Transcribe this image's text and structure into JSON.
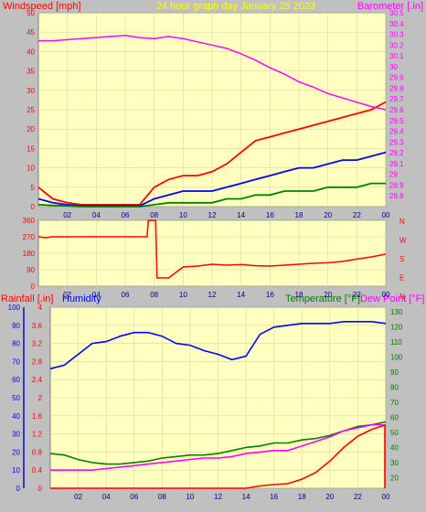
{
  "header_top": {
    "left": "Windspeed [mph]",
    "center": "24 hour graph day   January 25 2023",
    "right": "Barometer [.in]"
  },
  "header_bottom": {
    "left_rain": "Rainfall [.in]",
    "left_hum": "Humidity",
    "right_temp": "Temperature [°F]",
    "right_dew": "Dew Point [°F]"
  },
  "colors": {
    "background": "#c0c0c0",
    "plot_bg": "#ffffc0",
    "wind_gust": "#ff0000",
    "wind_avg": "#0000ff",
    "wind_min": "#008000",
    "barometer": "#ff00ff",
    "direction": "#ff0000",
    "rain": "#ff0000",
    "humidity": "#0000ff",
    "temperature": "#008000",
    "dewpoint": "#ff00ff"
  },
  "x_ticks": [
    "02",
    "04",
    "06",
    "08",
    "10",
    "12",
    "14",
    "16",
    "18",
    "20",
    "22",
    "00"
  ],
  "chart_data": [
    {
      "id": "wind_baro",
      "type": "line",
      "left_ticks": [
        "0",
        "5",
        "10",
        "15",
        "20",
        "25",
        "30",
        "35",
        "40",
        "45",
        "50"
      ],
      "right_ticks": [
        "28.8",
        "28.9",
        "29",
        "29.1",
        "29.2",
        "29.3",
        "29.4",
        "29.5",
        "29.6",
        "29.7",
        "29.8",
        "29.9",
        "30",
        "30.1",
        "30.2",
        "30.3",
        "30.4",
        "30.5"
      ],
      "ylim_left": [
        0,
        50
      ],
      "ylim_right": [
        28.7,
        30.5
      ],
      "x": [
        0,
        1,
        2,
        3,
        4,
        5,
        6,
        7,
        8,
        9,
        10,
        11,
        12,
        13,
        14,
        15,
        16,
        17,
        18,
        19,
        20,
        21,
        22,
        23,
        24
      ],
      "series": [
        {
          "key": "gust",
          "values": [
            5,
            2,
            1,
            0.5,
            0.5,
            0.5,
            0.5,
            0.5,
            5,
            7,
            8,
            8,
            9,
            11,
            14,
            17,
            18,
            19,
            20,
            21,
            22,
            23,
            24,
            25,
            27
          ]
        },
        {
          "key": "avg",
          "values": [
            2,
            1,
            0.5,
            0.2,
            0.2,
            0.2,
            0.2,
            0.2,
            2,
            3,
            4,
            4,
            4,
            5,
            6,
            7,
            8,
            9,
            10,
            10,
            11,
            12,
            12,
            13,
            14
          ]
        },
        {
          "key": "min",
          "values": [
            0.5,
            0.3,
            0.2,
            0,
            0,
            0,
            0,
            0,
            0.5,
            1,
            1,
            1,
            1,
            2,
            2,
            3,
            3,
            4,
            4,
            4,
            5,
            5,
            5,
            6,
            6
          ]
        },
        {
          "key": "barometer",
          "values": [
            30.24,
            30.24,
            30.25,
            30.26,
            30.27,
            30.28,
            30.29,
            30.27,
            30.26,
            30.28,
            30.26,
            30.23,
            30.2,
            30.17,
            30.12,
            30.06,
            29.99,
            29.93,
            29.86,
            29.81,
            29.75,
            29.71,
            29.67,
            29.63,
            29.6
          ]
        }
      ]
    },
    {
      "id": "direction",
      "type": "line",
      "left_ticks": [
        "0",
        "90",
        "180",
        "270",
        "360"
      ],
      "right_ticks": [
        "N",
        "W",
        "S",
        "E",
        "N"
      ],
      "ylim": [
        0,
        360
      ],
      "x": [
        0,
        0.5,
        1,
        2,
        3,
        4,
        5,
        6,
        7,
        7.5,
        7.6,
        8.1,
        8.2,
        9,
        10,
        11,
        12,
        13,
        14,
        15,
        16,
        17,
        18,
        19,
        20,
        21,
        22,
        23,
        24
      ],
      "series": [
        {
          "key": "direction",
          "values": [
            270,
            265,
            270,
            270,
            270,
            270,
            270,
            270,
            270,
            270,
            360,
            360,
            45,
            45,
            105,
            110,
            120,
            115,
            118,
            112,
            110,
            115,
            120,
            125,
            128,
            135,
            148,
            160,
            175
          ]
        }
      ]
    },
    {
      "id": "rain_hum_temp",
      "type": "line",
      "left_ticks": [
        "0",
        "0.4",
        "0.8",
        "1.2",
        "1.6",
        "2",
        "2.4",
        "2.8",
        "3.2",
        "3.6",
        "4"
      ],
      "humidity_ticks": [
        "0",
        "10",
        "20",
        "30",
        "40",
        "50",
        "60",
        "70",
        "80",
        "90",
        "100"
      ],
      "right_ticks": [
        "20",
        "30",
        "40",
        "50",
        "60",
        "70",
        "80",
        "90",
        "100",
        "110",
        "120",
        "130"
      ],
      "ylim_rain": [
        0,
        4
      ],
      "ylim_humidity": [
        0,
        100
      ],
      "ylim_temp": [
        13,
        133
      ],
      "x": [
        0,
        1,
        2,
        3,
        4,
        5,
        6,
        7,
        8,
        9,
        10,
        11,
        12,
        13,
        14,
        15,
        16,
        17,
        18,
        19,
        20,
        21,
        22,
        23,
        24
      ],
      "series": [
        {
          "key": "rain",
          "values": [
            0,
            0,
            0,
            0,
            0,
            0,
            0,
            0,
            0,
            0,
            0,
            0,
            0,
            0,
            0,
            0.05,
            0.08,
            0.1,
            0.2,
            0.35,
            0.6,
            0.9,
            1.15,
            1.3,
            1.4
          ]
        },
        {
          "key": "humidity",
          "values": [
            66,
            68,
            74,
            80,
            81,
            84,
            86,
            86,
            84,
            80,
            79,
            76,
            74,
            71,
            73,
            85,
            89,
            90,
            91,
            91,
            91,
            92,
            92,
            92,
            91
          ]
        },
        {
          "key": "temperature",
          "values": [
            36,
            35,
            32,
            30,
            29,
            29,
            30,
            31,
            33,
            34,
            35,
            35,
            36,
            38,
            40,
            41,
            43,
            43,
            45,
            46,
            48,
            51,
            54,
            55,
            57
          ]
        },
        {
          "key": "dewpoint",
          "values": [
            25,
            25,
            25,
            25,
            26,
            27,
            28,
            29,
            30,
            31,
            32,
            33,
            33,
            34,
            36,
            37,
            38,
            38,
            41,
            44,
            47,
            51,
            53,
            55,
            55
          ]
        }
      ]
    }
  ]
}
